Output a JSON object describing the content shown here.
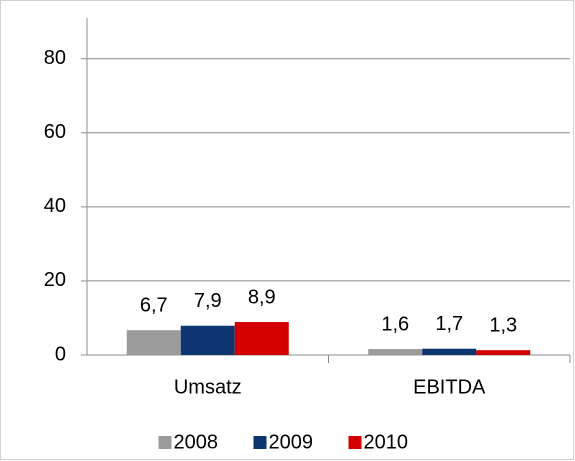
{
  "chart_data": {
    "type": "bar",
    "categories": [
      "Umsatz",
      "EBITDA"
    ],
    "series": [
      {
        "name": "2008",
        "color": "#9b9b9b",
        "values": [
          6.7,
          1.6
        ],
        "value_labels": [
          "6,7",
          "1,6"
        ]
      },
      {
        "name": "2009",
        "color": "#0d3570",
        "values": [
          7.9,
          1.7
        ],
        "value_labels": [
          "7,9",
          "1,7"
        ]
      },
      {
        "name": "2010",
        "color": "#d40000",
        "values": [
          8.9,
          1.3
        ],
        "value_labels": [
          "8,9",
          "1,3"
        ]
      }
    ],
    "ylim": [
      0,
      91
    ],
    "yticks": [
      0,
      20,
      40,
      60,
      80
    ],
    "grid": true,
    "legend": "bottom"
  }
}
